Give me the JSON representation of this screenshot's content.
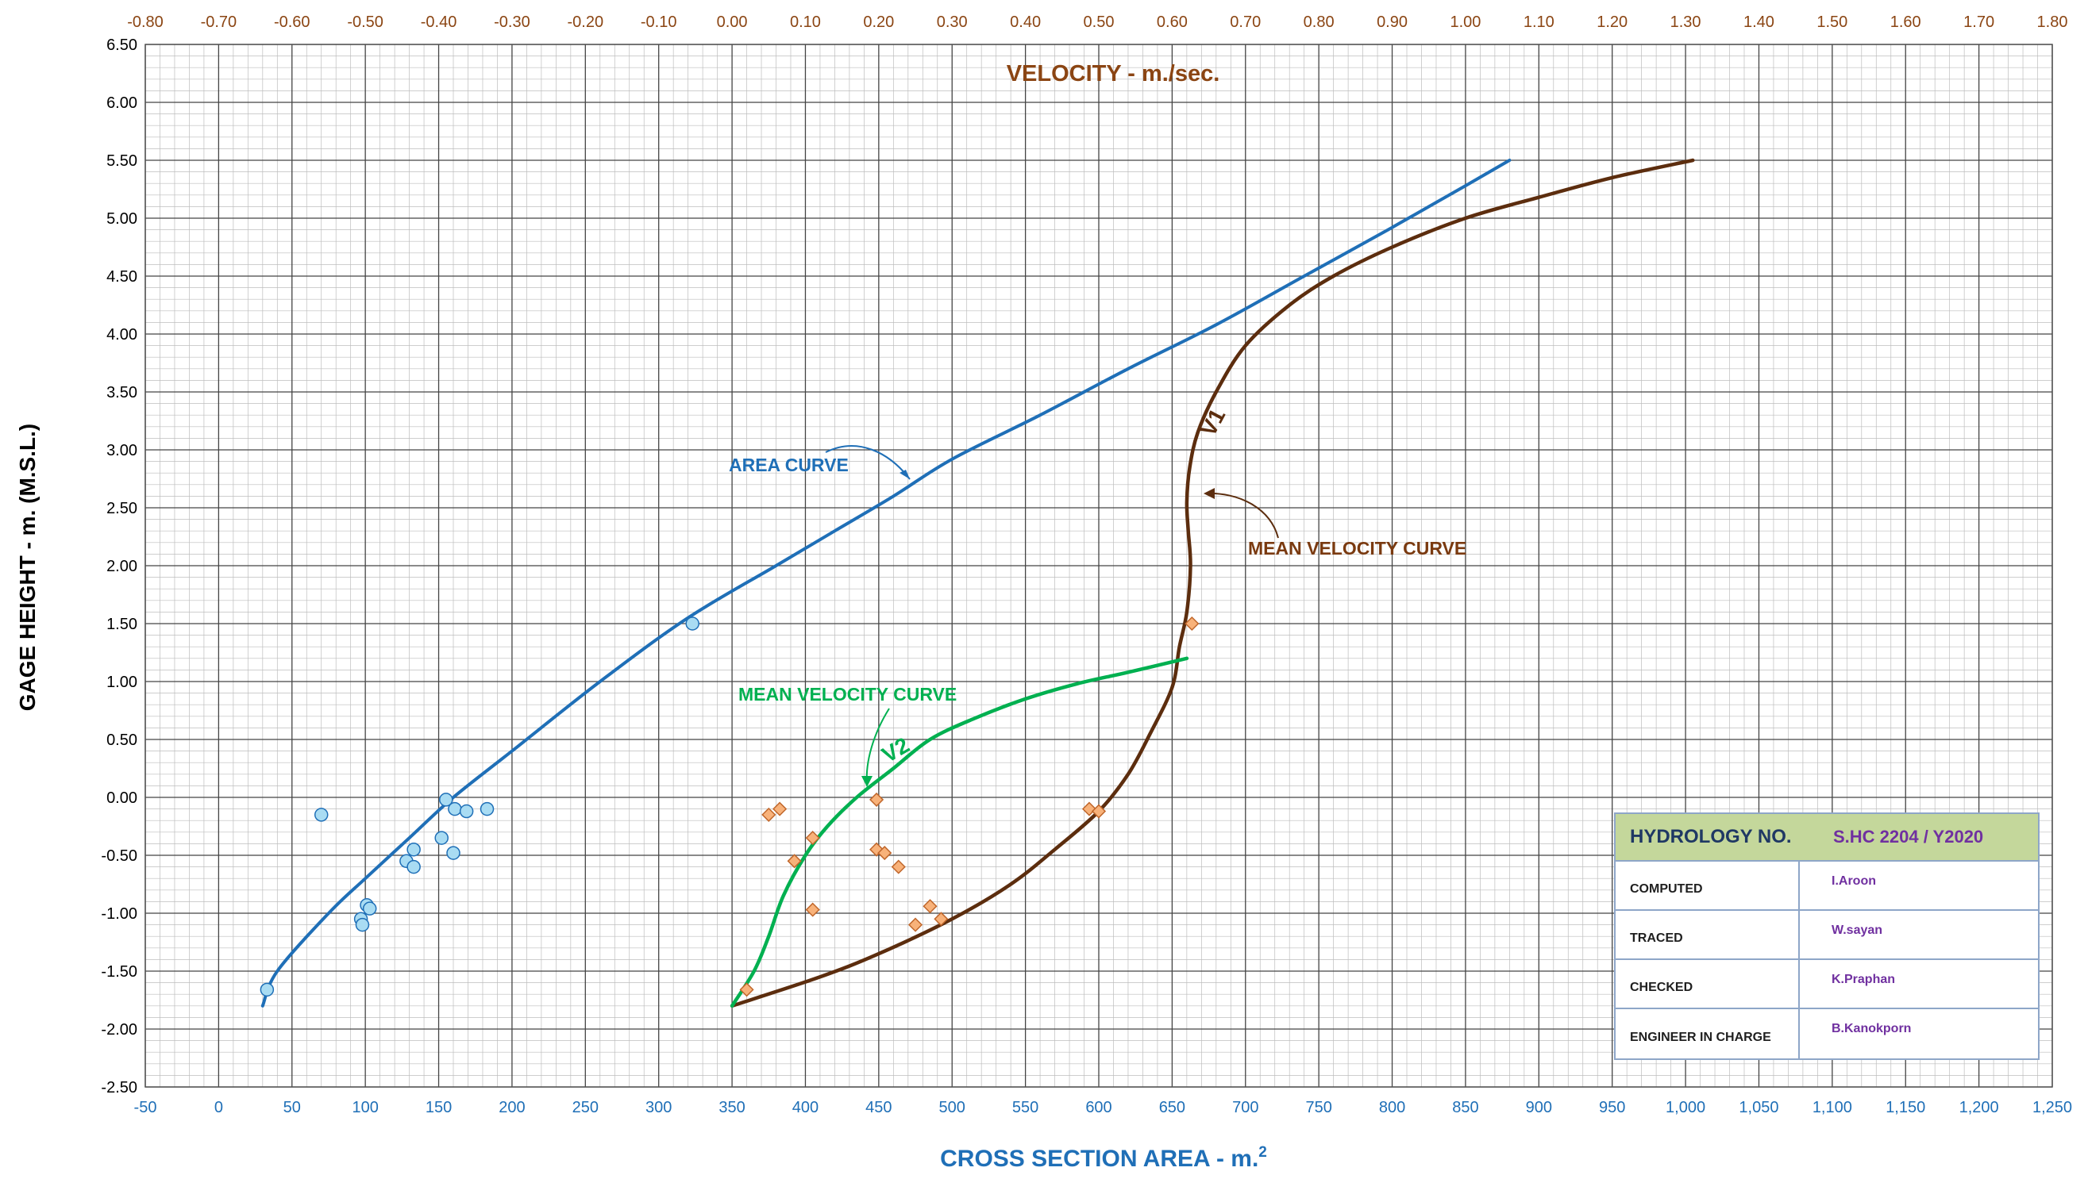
{
  "chart_data": {
    "type": "line",
    "title": "VELOCITY  -  m./sec.",
    "xlabel": "CROSS  SECTION  AREA  -  m.",
    "xlabel_sup": "2",
    "ylabel": "GAGE  HEIGHT  -  m. (M.S.L.)",
    "xlim": [
      -50,
      1250
    ],
    "ylim": [
      -2.5,
      6.5
    ],
    "x2lim": [
      -0.8,
      1.8
    ],
    "grid": true,
    "x_ticks": [
      "-50",
      "0",
      "50",
      "100",
      "150",
      "200",
      "250",
      "300",
      "350",
      "400",
      "450",
      "500",
      "550",
      "600",
      "650",
      "700",
      "750",
      "800",
      "850",
      "900",
      "950",
      "1,000",
      "1,050",
      "1,100",
      "1,150",
      "1,200",
      "1,250"
    ],
    "x2_ticks": [
      "-0.80",
      "-0.70",
      "-0.60",
      "-0.50",
      "-0.40",
      "-0.30",
      "-0.20",
      "-0.10",
      "0.00",
      "0.10",
      "0.20",
      "0.30",
      "0.40",
      "0.50",
      "0.60",
      "0.70",
      "0.80",
      "0.90",
      "1.00",
      "1.10",
      "1.20",
      "1.30",
      "1.40",
      "1.50",
      "1.60",
      "1.70",
      "1.80"
    ],
    "y_ticks": [
      "6.50",
      "6.00",
      "5.50",
      "5.00",
      "4.50",
      "4.00",
      "3.50",
      "3.00",
      "2.50",
      "2.00",
      "1.50",
      "1.00",
      "0.50",
      "0.00",
      "-0.50",
      "-1.00",
      "-1.50",
      "-2.00",
      "-2.50"
    ],
    "colors": {
      "area": "#1f6fb7",
      "v1": "#5c2d0e",
      "v2": "#00b050",
      "area_points": "#a9dcf3",
      "vel_points": "#f8b27a",
      "title": "#8b4513"
    },
    "series": [
      {
        "key": "area_curve",
        "axis": "bottom",
        "x": [
          30,
          40,
          75,
          100,
          130,
          160,
          200,
          260,
          320,
          380,
          420,
          460,
          500,
          560,
          620,
          680,
          740,
          800,
          850,
          880
        ],
        "y": [
          -1.8,
          -1.5,
          -1.0,
          -0.7,
          -0.35,
          0.0,
          0.4,
          1.0,
          1.55,
          2.0,
          2.3,
          2.6,
          2.92,
          3.3,
          3.7,
          4.08,
          4.5,
          4.92,
          5.28,
          5.5
        ]
      },
      {
        "key": "v1",
        "axis": "top",
        "x": [
          0.0,
          0.12,
          0.2,
          0.3,
          0.38,
          0.44,
          0.5,
          0.54,
          0.57,
          0.6,
          0.61,
          0.62,
          0.625,
          0.622,
          0.62,
          0.624,
          0.635,
          0.66,
          0.7,
          0.76,
          0.82,
          0.9,
          1.0,
          1.1,
          1.2,
          1.31
        ],
        "y": [
          -1.8,
          -1.55,
          -1.35,
          -1.05,
          -0.75,
          -0.45,
          -0.12,
          0.2,
          0.55,
          0.95,
          1.3,
          1.6,
          2.0,
          2.3,
          2.55,
          2.85,
          3.15,
          3.5,
          3.9,
          4.25,
          4.5,
          4.75,
          5.0,
          5.18,
          5.35,
          5.5
        ]
      },
      {
        "key": "v2",
        "axis": "top",
        "x": [
          0.0,
          0.03,
          0.05,
          0.07,
          0.1,
          0.13,
          0.17,
          0.22,
          0.27,
          0.33,
          0.4,
          0.47,
          0.54,
          0.62
        ],
        "y": [
          -1.8,
          -1.5,
          -1.2,
          -0.85,
          -0.5,
          -0.25,
          0.0,
          0.25,
          0.5,
          0.68,
          0.85,
          0.98,
          1.08,
          1.2
        ]
      }
    ],
    "area_points": [
      [
        33,
        -1.66
      ],
      [
        70,
        -0.15
      ],
      [
        97,
        -1.05
      ],
      [
        98,
        -1.1
      ],
      [
        101,
        -0.93
      ],
      [
        103,
        -0.96
      ],
      [
        128,
        -0.55
      ],
      [
        133,
        -0.45
      ],
      [
        133,
        -0.6
      ],
      [
        152,
        -0.35
      ],
      [
        155,
        -0.02
      ],
      [
        160,
        -0.48
      ],
      [
        161,
        -0.1
      ],
      [
        169,
        -0.12
      ],
      [
        183,
        -0.1
      ],
      [
        323,
        1.5
      ]
    ],
    "velocity_points": [
      [
        0.02,
        -1.66
      ],
      [
        0.05,
        -0.15
      ],
      [
        0.065,
        -0.1
      ],
      [
        0.085,
        -0.55
      ],
      [
        0.11,
        -0.35
      ],
      [
        0.11,
        -0.97
      ],
      [
        0.197,
        -0.02
      ],
      [
        0.197,
        -0.45
      ],
      [
        0.208,
        -0.48
      ],
      [
        0.227,
        -0.6
      ],
      [
        0.25,
        -1.1
      ],
      [
        0.27,
        -0.94
      ],
      [
        0.285,
        -1.05
      ],
      [
        0.487,
        -0.1
      ],
      [
        0.5,
        -0.12
      ],
      [
        0.627,
        1.5
      ]
    ],
    "annotations": {
      "area_curve_label": "AREA  CURVE",
      "v1_mean_label": "MEAN  VELOCITY  CURVE",
      "v2_mean_label": "MEAN  VELOCITY  CURVE",
      "v1_tag": "V1",
      "v2_tag": "V2"
    }
  },
  "info_box": {
    "header_label": "HYDROLOGY  NO.",
    "header_value": "S.HC 2204 / Y2020",
    "rows": [
      {
        "label": "COMPUTED",
        "value": "I.Aroon"
      },
      {
        "label": "TRACED",
        "value": "W.sayan"
      },
      {
        "label": "CHECKED",
        "value": "K.Praphan"
      },
      {
        "label": "ENGINEER IN CHARGE",
        "value": "B.Kanokporn"
      }
    ]
  }
}
